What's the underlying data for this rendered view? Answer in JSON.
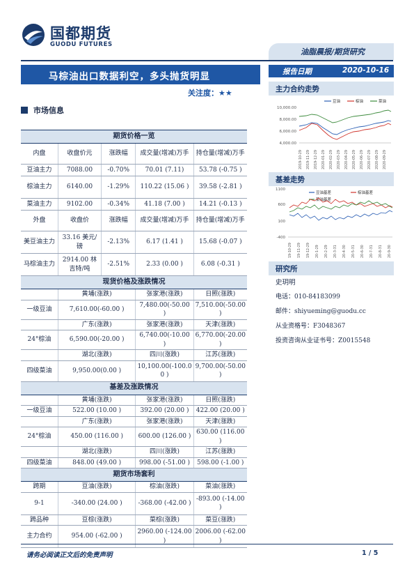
{
  "header": {
    "logo_cn": "国都期货",
    "logo_en": "GUODU FUTURES",
    "category": "油脂晨报/期货研究",
    "title": "马棕油出口数据利空，多头抛货明显",
    "attention_label": "关注度：",
    "attention_stars": "★★",
    "report_date_label": "报告日期",
    "report_date": "2020-10-16"
  },
  "sections": {
    "market": "市场信息",
    "main_contract": "主力合约走势",
    "basis": "基差走势",
    "research": "研究所"
  },
  "research": {
    "name": "史玥明",
    "phone": "电话：010-84183099",
    "email": "邮件：shiyueming@guodu.cc",
    "license": "从业资格号：F3048367",
    "advisory": "投资咨询从业证书号：Z0015548"
  },
  "table": {
    "futures_title": "期货价格一览",
    "domestic_header": [
      "内盘",
      "收盘价元",
      "涨跌幅",
      "成交量(增减)万手",
      "持仓量(增减)万手"
    ],
    "domestic_rows": [
      [
        "豆油主力",
        "7088.00",
        "-0.70%",
        "70.01 (7.11)",
        "53.78 (-0.75 )"
      ],
      [
        "棕油主力",
        "6140.00",
        "-1.29%",
        "110.22 (15.06 )",
        "39.58 (-2.81 )"
      ],
      [
        "菜油主力",
        "9102.00",
        "-0.34%",
        "41.18 (7.00 )",
        "14.21 (-0.13 )"
      ]
    ],
    "foreign_header": [
      "外盘",
      "收盘价",
      "涨跌幅",
      "成交量(增减)万手",
      "持仓量(增减)万手"
    ],
    "foreign_rows": [
      [
        "美豆油主力",
        "33.16 美元/磅",
        "-2.13%",
        "6.17 (1.41 )",
        "15.68 (-0.07 )"
      ],
      [
        "马棕油主力",
        "2914.00 林吉特/吨",
        "-2.51%",
        "2.33 (0.00 )",
        "6.08 (-0.31 )"
      ]
    ],
    "spot_title": "现货价格及涨跌情况",
    "spot_rows": [
      {
        "regions": [
          "黄埔(涨跌)",
          "张家港(涨跌)",
          "日照(涨跌)"
        ],
        "label": "一级豆油",
        "values": [
          "7,610.00(-60.00 )",
          "7,480.00(-50.00 )",
          "7,510.00(-50.00 )"
        ]
      },
      {
        "regions": [
          "广东(涨跌)",
          "张家港(涨跌)",
          "天津(涨跌)"
        ],
        "label": "24°棕油",
        "values": [
          "6,590.00(-20.00 )",
          "6,740.00(-10.00 )",
          "6,770.00(-20.00 )"
        ]
      },
      {
        "regions": [
          "湖北(涨跌)",
          "四川(涨跌)",
          "江苏(涨跌)"
        ],
        "label": "四级菜油",
        "values": [
          "9,950.00(0.00 )",
          "10,100.00(-100.0 0 )",
          "9,700.00(-50.00 )"
        ]
      }
    ],
    "basis_title": "基差及涨跌情况",
    "basis_rows": [
      {
        "regions": [
          "黄埔(涨跌)",
          "张家港(涨跌)",
          "日照(涨跌)"
        ],
        "label": "一级豆油",
        "values": [
          "522.00 (10.00 )",
          "392.00 (20.00 )",
          "422.00 (20.00 )"
        ]
      },
      {
        "regions": [
          "广东(涨跌)",
          "张家港(涨跌)",
          "天津(涨跌)"
        ],
        "label": "24°棕油",
        "values": [
          "450.00 (116.00 )",
          "600.00 (126.00 )",
          "630.00 (116.00 )"
        ]
      },
      {
        "regions": [
          "湖北(涨跌)",
          "四川(涨跌)",
          "江苏(涨跌)"
        ],
        "label": "四级菜油",
        "values": [
          "848.00 (49.00 )",
          "998.00 (-51.00 )",
          "598.00 (-1.00 )"
        ]
      }
    ],
    "arb_title": "期货市场套利",
    "arb_header1": [
      "跨期",
      "豆油(涨跌)",
      "棕油(涨跌)",
      "菜油(涨跌)"
    ],
    "arb_row1": [
      "9-1",
      "-340.00 (24.00 )",
      "-368.00 (-42.00 )",
      "-893.00 (-14.00 )"
    ],
    "arb_header2": [
      "跨品种",
      "豆棕(涨跌)",
      "菜棕(涨跌)",
      "菜豆(涨跌)"
    ],
    "arb_row2": [
      "主力合约",
      "954.00 (-62.00 )",
      "2960.00 (-124.00 )",
      "2006.00 (-62.00 )"
    ]
  },
  "chart1": {
    "legend": [
      "豆油",
      "棕油",
      "菜油"
    ],
    "colors": [
      "#2b5fb4",
      "#d0342c",
      "#3d8b3d"
    ],
    "y_ticks": [
      "10,000.00",
      "8,000.00",
      "6,000.00",
      "4,000.00"
    ],
    "x_ticks": [
      "2019-10-29",
      "2019-11-29",
      "2019-12-29",
      "2020-01-29",
      "2020-02-29",
      "2020-03-29",
      "2020-04-29",
      "2020-05-29",
      "2020-06-29",
      "2020-07-29",
      "2020-08-29",
      "2020-09-29"
    ]
  },
  "chart2": {
    "legend": [
      "豆油基差",
      "棕油基差",
      "菜油基差"
    ],
    "colors": [
      "#2b5fb4",
      "#d0342c",
      "#3d8b3d"
    ],
    "y_ticks": [
      "1100",
      "600",
      "100",
      "-400"
    ],
    "x_ticks": [
      "19-10-29",
      "19-11-29",
      "19-12-29",
      "20-1-29",
      "20-2-29",
      "20-3-31",
      "20-4-30",
      "20-5-31",
      "20-6-30",
      "20-7-31",
      "20-8-31",
      "20-9-30"
    ]
  },
  "footer": {
    "disclaimer": "请务必阅读正文后的免责声明",
    "page": "1 / 5"
  }
}
